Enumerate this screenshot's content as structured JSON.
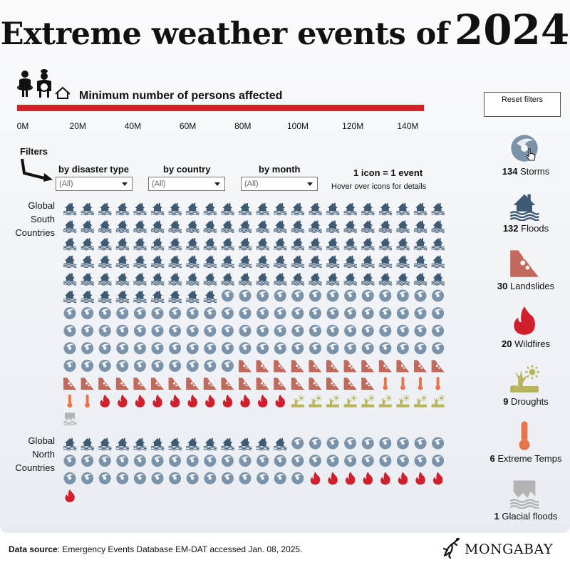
{
  "title": {
    "text": "Extreme weather events of",
    "year": "2024"
  },
  "bar": {
    "label": "Minimum number of persons affected"
  },
  "reset_label": "Reset filters",
  "filters": {
    "label": "Filters",
    "disaster_type": {
      "label": "by disaster type",
      "value": "(All)"
    },
    "country": {
      "label": "by country",
      "value": "(All)"
    },
    "month": {
      "label": "by month",
      "value": "(All)"
    }
  },
  "legend_note": "1 icon = 1 event",
  "hover_note": "Hover over  icons for details",
  "source": {
    "label": "Data source",
    "text": ": Emergency Events Database EM-DAT accessed Jan. 08, 2025."
  },
  "logo_text": "MONGABAY",
  "colors": {
    "flood": "#3f5b73",
    "storm": "#7a93a8",
    "landslide": "#c0695c",
    "wildfire": "#d0202d",
    "extreme_temp": "#e8764b",
    "drought": "#b8b45c",
    "glacial_flood": "#b4b4b4",
    "bar": "#d62027"
  },
  "chart_data": {
    "type": "pictogram",
    "unit": "1 icon = 1 event",
    "bar_axis": {
      "label": "Minimum number of persons affected",
      "ticks": [
        "0M",
        "20M",
        "40M",
        "60M",
        "80M",
        "100M",
        "120M",
        "140M"
      ],
      "tick_values": [
        0,
        20,
        40,
        60,
        80,
        100,
        120,
        140
      ],
      "max": 150,
      "value": 148
    },
    "categories": [
      {
        "key": "storm",
        "count": 134,
        "label": "Storms",
        "icon": "storm-icon"
      },
      {
        "key": "flood",
        "count": 132,
        "label": "Floods",
        "icon": "flood-icon"
      },
      {
        "key": "landslide",
        "count": 30,
        "label": "Landslides",
        "icon": "landslide-icon"
      },
      {
        "key": "wildfire",
        "count": 20,
        "label": "Wildfires",
        "icon": "wildfire-icon"
      },
      {
        "key": "drought",
        "count": 9,
        "label": "Droughts",
        "icon": "drought-icon"
      },
      {
        "key": "extreme_temp",
        "count": 6,
        "label": "Extreme Temps",
        "icon": "thermometer-icon"
      },
      {
        "key": "glacial_flood",
        "count": 1,
        "label": "Glacial floods",
        "icon": "glacier-icon"
      }
    ],
    "groups": [
      {
        "label": "Global South Countries",
        "lines": [
          "Global",
          "South",
          "Countries"
        ],
        "counts": {
          "flood": 119,
          "storm": 89,
          "landslide": 30,
          "extreme_temp": 6,
          "wildfire": 11,
          "drought": 9,
          "glacial_flood": 1
        }
      },
      {
        "label": "Global North Countries",
        "lines": [
          "Global",
          "North",
          "Countries"
        ],
        "counts": {
          "flood": 13,
          "storm": 45,
          "wildfire": 9
        }
      }
    ]
  }
}
